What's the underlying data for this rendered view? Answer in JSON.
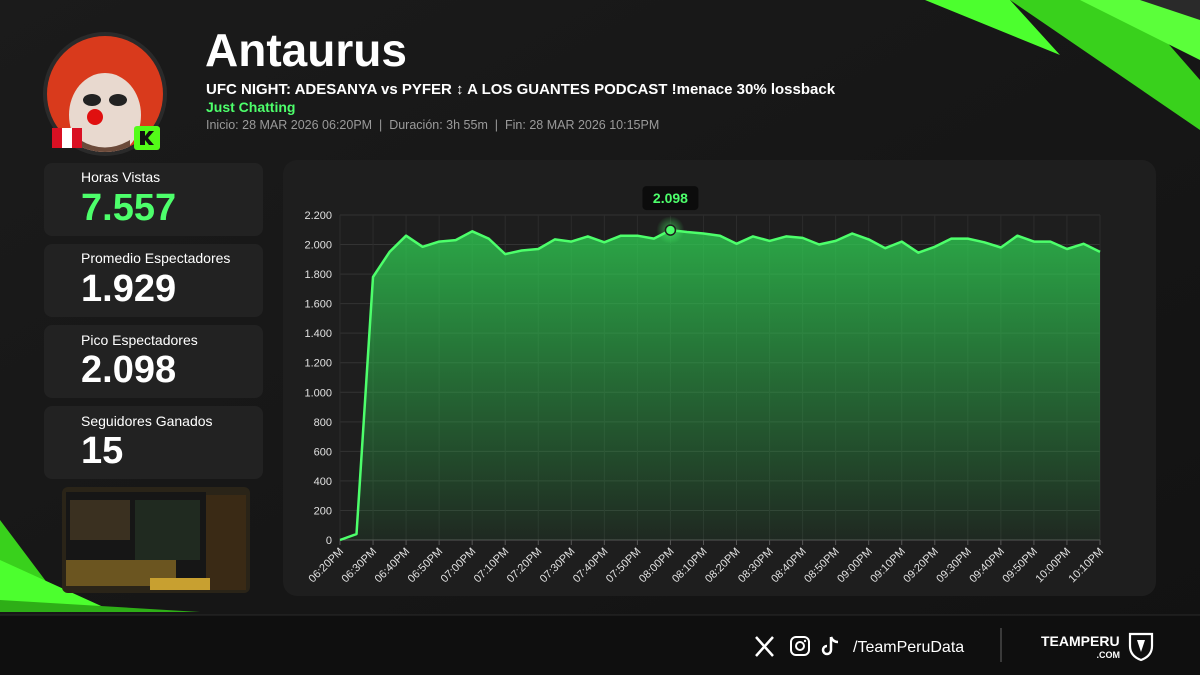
{
  "header": {
    "name": "Antaurus",
    "stream_title": "UFC NIGHT: ADESANYA vs PYFER ↕ A LOS GUANTES PODCAST !menace 30% lossback",
    "category": "Just Chatting",
    "info": "Inicio: 28 MAR 2026 06:20PM  |  Duración: 3h 55m  |  Fin: 28 MAR 2026 10:15PM"
  },
  "stats": [
    {
      "label": "Horas Vistas",
      "value": "7.557"
    },
    {
      "label": "Promedio Espectadores",
      "value": "1.929"
    },
    {
      "label": "Pico Espectadores",
      "value": "2.098"
    },
    {
      "label": "Seguidores Ganados",
      "value": "15"
    }
  ],
  "footer": {
    "handle": "/TeamPeruData",
    "brand": "TEAMPERU",
    "brand_sub": ".COM"
  },
  "chart_data": {
    "type": "area",
    "color": "#4dff6b",
    "grid": true,
    "categories": [
      "06:20PM",
      null,
      "06:30PM",
      null,
      "06:40PM",
      null,
      "06:50PM",
      null,
      "07:00PM",
      null,
      "07:10PM",
      null,
      "07:20PM",
      null,
      "07:30PM",
      null,
      "07:40PM",
      null,
      "07:50PM",
      null,
      "08:00PM",
      null,
      "08:10PM",
      null,
      "08:20PM",
      null,
      "08:30PM",
      null,
      "08:40PM",
      null,
      "08:50PM",
      null,
      "09:00PM",
      null,
      "09:10PM",
      null,
      "09:20PM",
      null,
      "09:30PM",
      null,
      "09:40PM",
      null,
      "09:50PM",
      null,
      "10:00PM",
      null,
      "10:10PM"
    ],
    "values": [
      0,
      40,
      1780,
      1950,
      2060,
      1985,
      2020,
      2030,
      2090,
      2040,
      1935,
      1960,
      1970,
      2035,
      2020,
      2055,
      2015,
      2060,
      2060,
      2040,
      2098,
      2085,
      2075,
      2060,
      2005,
      2055,
      2025,
      2055,
      2045,
      2000,
      2025,
      2075,
      2035,
      1975,
      2020,
      1945,
      1985,
      2040,
      2040,
      2015,
      1980,
      2060,
      2020,
      2020,
      1970,
      2005,
      1950
    ],
    "value_labels": [
      null,
      null,
      null,
      null,
      null,
      null,
      null,
      null,
      null,
      null,
      null,
      null,
      null,
      null,
      null,
      null,
      null,
      null,
      null,
      null,
      "2.098",
      null,
      null,
      null,
      null,
      null,
      null,
      null,
      null,
      null,
      null,
      null,
      null,
      null,
      null,
      null,
      null,
      null,
      null,
      null,
      null,
      null,
      null,
      null,
      null,
      null,
      null
    ],
    "ylim": [
      0,
      2200
    ],
    "yticks": [
      0,
      200,
      400,
      600,
      800,
      {
        "value": 1000,
        "label": "1.000"
      },
      {
        "value": 1200,
        "label": "1.200"
      },
      {
        "value": 1400,
        "label": "1.400"
      },
      {
        "value": 1600,
        "label": "1.600"
      },
      {
        "value": 1800,
        "label": "1.800"
      },
      {
        "value": 2000,
        "label": "2.000"
      },
      {
        "value": 2200,
        "label": "2.200"
      }
    ]
  }
}
